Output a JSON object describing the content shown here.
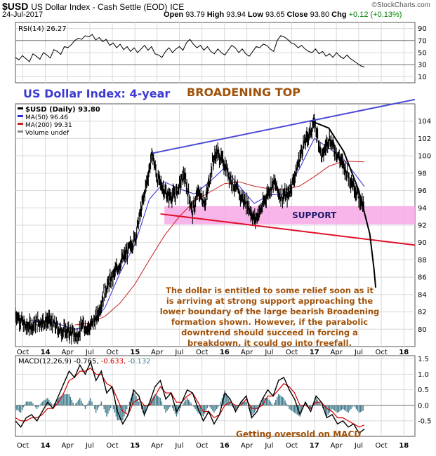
{
  "header": {
    "symbol": "$USD",
    "description": "US Dollar Index - Cash Settle (EOD)",
    "exchange": "ICE",
    "date": "24-Jul-2017",
    "open_label": "Open",
    "open": "93.79",
    "high_label": "High",
    "high": "93.94",
    "low_label": "Low",
    "low": "93.65",
    "close_label": "Close",
    "close": "93.80",
    "chg_label": "Chg",
    "chg": "+0.12 (+0.13%)",
    "brand": "©StockCharts.com"
  },
  "chart_data": [
    {
      "type": "line",
      "panel": "rsi",
      "legend": "RSI(14) 26.27",
      "ylim": [
        0,
        100
      ],
      "yticks": [
        10,
        30,
        50,
        70,
        90
      ],
      "levels": [
        30,
        70
      ],
      "series": [
        {
          "name": "RSI(14)",
          "values": [
            42,
            38,
            45,
            40,
            35,
            48,
            44,
            39,
            50,
            46,
            41,
            55,
            52,
            47,
            60,
            58,
            63,
            70,
            74,
            72,
            78,
            76,
            80,
            71,
            75,
            68,
            72,
            62,
            66,
            58,
            64,
            55,
            60,
            52,
            58,
            50,
            56,
            62,
            54,
            60,
            48,
            46,
            42,
            52,
            58,
            50,
            56,
            60,
            54,
            66,
            72,
            64,
            58,
            62,
            54,
            60,
            52,
            48,
            56,
            50,
            46,
            54,
            62,
            58,
            50,
            56,
            48,
            44,
            52,
            60,
            58,
            64,
            62,
            56,
            52,
            70,
            78,
            76,
            72,
            66,
            64,
            58,
            62,
            56,
            52,
            50,
            56,
            48,
            52,
            44,
            48,
            42,
            50,
            44,
            40,
            46,
            40,
            36,
            32,
            28,
            26
          ]
        }
      ]
    },
    {
      "type": "line",
      "panel": "price",
      "title": "US Dollar Index: 4-year",
      "annotation_title": "BROADENING TOP",
      "legend": [
        "$USD (Daily) 93.80",
        "MA(50) 96.46",
        "MA(200) 99.31",
        "Volume undef"
      ],
      "ylim": [
        78,
        106
      ],
      "yticks": [
        80,
        82,
        84,
        86,
        88,
        90,
        92,
        94,
        96,
        98,
        100,
        102,
        104
      ],
      "x_range": [
        "2013-09-01",
        "2018-02-15"
      ],
      "xticks": [
        {
          "date": "2013-10-01",
          "label": "Oct"
        },
        {
          "date": "2014-01-01",
          "label": "14"
        },
        {
          "date": "2014-04-01",
          "label": "Apr"
        },
        {
          "date": "2014-07-01",
          "label": "Jul"
        },
        {
          "date": "2014-10-01",
          "label": "Oct"
        },
        {
          "date": "2015-01-01",
          "label": "15"
        },
        {
          "date": "2015-04-01",
          "label": "Apr"
        },
        {
          "date": "2015-07-01",
          "label": "Jul"
        },
        {
          "date": "2015-10-01",
          "label": "Oct"
        },
        {
          "date": "2016-01-01",
          "label": "16"
        },
        {
          "date": "2016-04-01",
          "label": "Apr"
        },
        {
          "date": "2016-07-01",
          "label": "Jul"
        },
        {
          "date": "2016-10-01",
          "label": "Oct"
        },
        {
          "date": "2017-01-01",
          "label": "17"
        },
        {
          "date": "2017-04-01",
          "label": "Apr"
        },
        {
          "date": "2017-07-01",
          "label": "Jul"
        },
        {
          "date": "2017-10-01",
          "label": "Oct"
        },
        {
          "date": "2018-01-01",
          "label": "18"
        }
      ],
      "price_series": {
        "name": "$USD",
        "x": [
          "2013-09-01",
          "2013-10-15",
          "2013-12-01",
          "2014-01-15",
          "2014-03-01",
          "2014-04-15",
          "2014-05-08",
          "2014-06-01",
          "2014-07-01",
          "2014-08-01",
          "2014-09-01",
          "2014-10-01",
          "2014-11-01",
          "2014-12-01",
          "2015-01-01",
          "2015-02-01",
          "2015-03-13",
          "2015-04-01",
          "2015-04-15",
          "2015-05-15",
          "2015-06-15",
          "2015-07-20",
          "2015-08-24",
          "2015-09-15",
          "2015-10-15",
          "2015-11-15",
          "2015-12-02",
          "2016-01-01",
          "2016-02-01",
          "2016-03-01",
          "2016-04-01",
          "2016-05-03",
          "2016-06-01",
          "2016-06-24",
          "2016-07-20",
          "2016-08-15",
          "2016-09-15",
          "2016-10-15",
          "2016-11-15",
          "2017-01-03",
          "2017-02-01",
          "2017-03-01",
          "2017-04-01",
          "2017-05-01",
          "2017-06-01",
          "2017-07-01",
          "2017-07-24"
        ],
        "values": [
          81.8,
          80.2,
          80.8,
          81.0,
          79.9,
          79.6,
          79.2,
          80.4,
          80.2,
          81.5,
          84.5,
          86.0,
          87.6,
          88.9,
          90.5,
          94.5,
          100.3,
          97.5,
          96.8,
          95.3,
          95.5,
          97.8,
          93.5,
          95.8,
          94.6,
          99.5,
          100.4,
          99.0,
          97.0,
          95.5,
          94.5,
          92.6,
          94.0,
          95.7,
          97.0,
          95.4,
          95.4,
          97.8,
          101.1,
          103.8,
          99.8,
          102.1,
          100.4,
          98.8,
          97.1,
          95.3,
          93.8
        ]
      },
      "series": [
        {
          "name": "MA(50)",
          "x": [
            "2013-11-01",
            "2014-02-01",
            "2014-05-01",
            "2014-07-01",
            "2014-09-01",
            "2014-11-01",
            "2015-01-01",
            "2015-03-01",
            "2015-05-01",
            "2015-07-01",
            "2015-09-01",
            "2015-11-01",
            "2016-01-01",
            "2016-03-01",
            "2016-05-01",
            "2016-07-01",
            "2016-09-01",
            "2016-11-01",
            "2017-01-01",
            "2017-03-01",
            "2017-05-01",
            "2017-07-24"
          ],
          "values": [
            81.0,
            80.8,
            80.0,
            80.3,
            82.5,
            86.5,
            89.8,
            95.0,
            97.0,
            96.2,
            95.6,
            97.0,
            98.6,
            96.5,
            94.5,
            95.5,
            95.6,
            98.5,
            102.0,
            100.9,
            99.6,
            96.46
          ]
        },
        {
          "name": "MA(200)",
          "x": [
            "2014-05-01",
            "2014-07-01",
            "2014-09-01",
            "2014-11-01",
            "2015-01-01",
            "2015-03-01",
            "2015-05-01",
            "2015-07-01",
            "2015-09-01",
            "2015-11-01",
            "2016-01-01",
            "2016-03-01",
            "2016-05-01",
            "2016-07-01",
            "2016-09-01",
            "2016-11-01",
            "2017-01-01",
            "2017-03-01",
            "2017-05-01",
            "2017-07-24"
          ],
          "values": [
            80.5,
            80.7,
            81.5,
            83.0,
            85.2,
            88.0,
            90.8,
            93.0,
            94.8,
            95.8,
            96.8,
            97.0,
            96.5,
            96.2,
            96.1,
            96.5,
            97.6,
            98.8,
            99.4,
            99.31
          ]
        }
      ],
      "lines": [
        {
          "name": "broadening-top-upper-trendline",
          "from": {
            "x": "2015-03-13",
            "y": 100.3
          },
          "to": {
            "x": "2018-02-15",
            "y": 106.5
          }
        },
        {
          "name": "broadening-top-lower-trendline",
          "from": {
            "x": "2015-04-15",
            "y": 93.3
          },
          "to": {
            "x": "2018-02-15",
            "y": 89.7
          }
        },
        {
          "name": "parabolic-downtrend",
          "points": [
            {
              "x": "2016-12-20",
              "y": 104.0
            },
            {
              "x": "2017-03-01",
              "y": 103.2
            },
            {
              "x": "2017-05-01",
              "y": 100.5
            },
            {
              "x": "2017-07-01",
              "y": 96.0
            },
            {
              "x": "2017-08-15",
              "y": 91.0
            },
            {
              "x": "2017-09-01",
              "y": 87.0
            },
            {
              "x": "2017-09-08",
              "y": 84.8
            }
          ]
        }
      ],
      "zones": [
        {
          "label": "SUPPORT",
          "x_from": "2015-05-01",
          "x_to": "2018-02-15",
          "y_from": 92.1,
          "y_to": 94.2
        }
      ],
      "note": "The dollar is entitled to some relief soon as it is arriving at strong support approaching the lower boundary of the large bearish Broadening formation shown. However, if the parabolic downtrend should succeed in forcing a breakdown, it could go into freefall."
    },
    {
      "type": "line",
      "panel": "macd",
      "legend": "MACD(12,26,9) -0.765, -0.633, -0.132",
      "ylim": [
        -1.0,
        1.6
      ],
      "yticks": [
        1.5,
        1.0,
        0.5,
        0.0,
        -0.5
      ],
      "annotation": "Getting oversold on MACD",
      "series": [
        {
          "name": "MACD",
          "values": [
            -0.5,
            -0.7,
            -0.4,
            -0.3,
            -0.5,
            -0.2,
            0.1,
            -0.1,
            0.3,
            0.7,
            1.1,
            0.9,
            1.3,
            1.0,
            1.4,
            0.8,
            1.1,
            0.4,
            0.6,
            -0.2,
            -0.6,
            -0.3,
            0.5,
            0.3,
            -0.3,
            0.1,
            0.6,
            0.8,
            0.2,
            0.4,
            -0.2,
            0.1,
            0.5,
            0.4,
            -0.1,
            -0.5,
            -0.2,
            -0.6,
            -0.3,
            0.4,
            0.2,
            -0.2,
            0.1,
            0.3,
            -0.4,
            -0.2,
            0.2,
            0.5,
            0.3,
            0.8,
            0.9,
            0.5,
            0.2,
            -0.3,
            0.1,
            -0.2,
            0.3,
            0.1,
            -0.4,
            -0.3,
            -0.6,
            -0.5,
            -0.7,
            -0.6,
            -0.9,
            -0.765
          ]
        },
        {
          "name": "Signal",
          "values": [
            -0.4,
            -0.5,
            -0.5,
            -0.4,
            -0.4,
            -0.3,
            -0.1,
            -0.1,
            0.1,
            0.4,
            0.8,
            0.9,
            1.1,
            1.1,
            1.2,
            1.0,
            1.0,
            0.7,
            0.6,
            0.2,
            -0.2,
            -0.3,
            0.1,
            0.2,
            0.0,
            0.0,
            0.3,
            0.6,
            0.4,
            0.4,
            0.1,
            0.1,
            0.3,
            0.4,
            0.1,
            -0.2,
            -0.2,
            -0.4,
            -0.3,
            0.0,
            0.1,
            0.0,
            0.0,
            0.2,
            -0.1,
            -0.1,
            0.0,
            0.3,
            0.3,
            0.5,
            0.7,
            0.6,
            0.4,
            0.0,
            0.0,
            -0.1,
            0.1,
            0.1,
            -0.1,
            -0.2,
            -0.4,
            -0.4,
            -0.5,
            -0.6,
            -0.7,
            -0.633
          ]
        }
      ]
    }
  ],
  "colors": {
    "price": "#000000",
    "ma50": "#2a2adb",
    "ma200": "#c81e1e",
    "upper_trendline": "#4a4ad6",
    "lower_trendline": "#e0102a",
    "support_zone": "#f7a8e6",
    "support_text": "#1a1a6a",
    "title_blue": "#3b3bd0",
    "annotation_brown": "#a0520a",
    "macd_line": "#000000",
    "signal_line": "#d40000",
    "histogram": "#3c7a8c",
    "rsi_line": "#000000",
    "rsi_fill": "#bcbcbc"
  }
}
